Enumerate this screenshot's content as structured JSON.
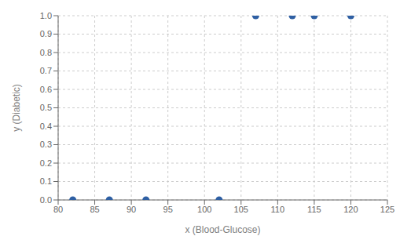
{
  "chart_data": {
    "type": "scatter",
    "x": [
      82,
      87,
      92,
      102,
      107,
      112,
      115,
      120
    ],
    "values": [
      0,
      0,
      0,
      0,
      1,
      1,
      1,
      1
    ],
    "xlabel": "x (Blood-Glucose)",
    "ylabel": "y (Diabetic)",
    "xlim": [
      80,
      125
    ],
    "ylim": [
      0,
      1
    ],
    "xticks": [
      80,
      85,
      90,
      95,
      100,
      105,
      110,
      115,
      120,
      125
    ],
    "yticks": [
      {
        "value": 0,
        "label": "0.0"
      },
      0.1,
      0.2,
      0.3,
      0.4,
      0.5,
      0.6,
      0.7,
      0.8,
      0.9,
      {
        "value": 1,
        "label": "1.0"
      }
    ],
    "color": "#2E5FA3",
    "grid": true
  }
}
